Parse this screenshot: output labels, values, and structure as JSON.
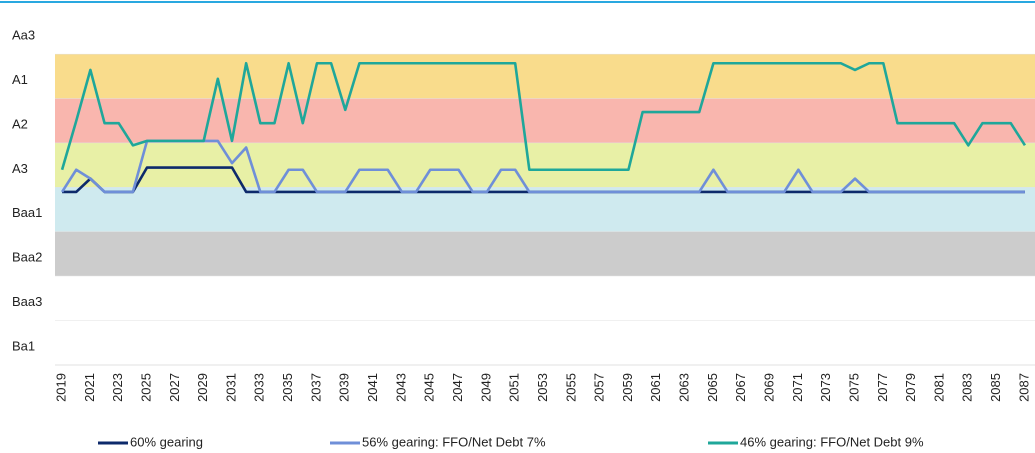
{
  "chart_data": {
    "type": "line",
    "categories": [
      2019,
      null,
      2021,
      null,
      2023,
      null,
      2025,
      null,
      2027,
      null,
      2029,
      null,
      2031,
      null,
      2033,
      null,
      2035,
      null,
      2037,
      null,
      2039,
      null,
      2041,
      null,
      2043,
      null,
      2045,
      null,
      2047,
      null,
      2049,
      null,
      2051,
      null,
      2053,
      null,
      2055,
      null,
      2057,
      null,
      2059,
      null,
      2061,
      null,
      2063,
      null,
      2065,
      null,
      2067,
      null,
      2069,
      null,
      2071,
      null,
      2073,
      null,
      2075,
      null,
      2077,
      null,
      2079,
      null,
      2081,
      null,
      2083,
      null,
      2085,
      null,
      2087
    ],
    "ylim": [
      0,
      8
    ],
    "yticks": [
      {
        "value": 7.5,
        "label": "Aa3"
      },
      {
        "value": 6.5,
        "label": "A1"
      },
      {
        "value": 5.5,
        "label": "A2"
      },
      {
        "value": 4.5,
        "label": "A3"
      },
      {
        "value": 3.5,
        "label": "Baa1"
      },
      {
        "value": 2.5,
        "label": "Baa2"
      },
      {
        "value": 1.5,
        "label": "Baa3"
      },
      {
        "value": 0.5,
        "label": "Ba1"
      }
    ],
    "band_colors": [
      "#ffffff",
      "#f9dc8c",
      "#f9b6ae",
      "#e8f0a6",
      "#cfeaef",
      "#cccccc",
      "#ffffff",
      "#ffffff"
    ],
    "grid": true,
    "legend": "bottom",
    "series": [
      {
        "name": "60% gearing",
        "color": "#0d2a6b",
        "values": [
          3.9,
          3.9,
          4.2,
          3.9,
          3.9,
          3.9,
          4.45,
          4.45,
          4.45,
          4.45,
          4.45,
          4.45,
          4.45,
          3.9,
          3.9,
          3.9,
          3.9,
          3.9,
          3.9,
          3.9,
          3.9,
          3.9,
          3.9,
          3.9,
          3.9,
          3.9,
          3.9,
          3.9,
          3.9,
          3.9,
          3.9,
          3.9,
          3.9,
          3.9,
          3.9,
          3.9,
          3.9,
          3.9,
          3.9,
          3.9,
          3.9,
          3.9,
          3.9,
          3.9,
          3.9,
          3.9,
          3.9,
          3.9,
          3.9,
          3.9,
          3.9,
          3.9,
          3.9,
          3.9,
          3.9,
          3.9,
          3.9,
          3.9,
          3.9,
          3.9,
          3.9,
          3.9,
          3.9,
          3.9,
          3.9,
          3.9,
          3.9,
          3.9,
          3.9
        ]
      },
      {
        "name": "56% gearing: FFO/Net Debt 7%",
        "color": "#6f8fd8",
        "values": [
          3.9,
          4.4,
          4.2,
          3.9,
          3.9,
          3.9,
          5.05,
          5.05,
          5.05,
          5.05,
          5.05,
          5.05,
          4.55,
          4.9,
          3.9,
          3.9,
          4.4,
          4.4,
          3.9,
          3.9,
          3.9,
          4.4,
          4.4,
          4.4,
          3.9,
          3.9,
          4.4,
          4.4,
          4.4,
          3.9,
          3.9,
          4.4,
          4.4,
          3.9,
          3.9,
          3.9,
          3.9,
          3.9,
          3.9,
          3.9,
          3.9,
          3.9,
          3.9,
          3.9,
          3.9,
          3.9,
          4.4,
          3.9,
          3.9,
          3.9,
          3.9,
          3.9,
          4.4,
          3.9,
          3.9,
          3.9,
          4.2,
          3.9,
          3.9,
          3.9,
          3.9,
          3.9,
          3.9,
          3.9,
          3.9,
          3.9,
          3.9,
          3.9,
          3.9
        ]
      },
      {
        "name": "46% gearing: FFO/Net Debt 9%",
        "color": "#1fa79a",
        "values": [
          4.4,
          5.5,
          6.65,
          5.45,
          5.45,
          4.95,
          5.05,
          5.05,
          5.05,
          5.05,
          5.05,
          6.45,
          5.05,
          6.8,
          5.45,
          5.45,
          6.8,
          5.45,
          6.8,
          6.8,
          5.75,
          6.8,
          6.8,
          6.8,
          6.8,
          6.8,
          6.8,
          6.8,
          6.8,
          6.8,
          6.8,
          6.8,
          6.8,
          4.4,
          4.4,
          4.4,
          4.4,
          4.4,
          4.4,
          4.4,
          4.4,
          5.7,
          5.7,
          5.7,
          5.7,
          5.7,
          6.8,
          6.8,
          6.8,
          6.8,
          6.8,
          6.8,
          6.8,
          6.8,
          6.8,
          6.8,
          6.65,
          6.8,
          6.8,
          5.45,
          5.45,
          5.45,
          5.45,
          5.45,
          4.95,
          5.45,
          5.45,
          5.45,
          4.95
        ]
      }
    ]
  }
}
